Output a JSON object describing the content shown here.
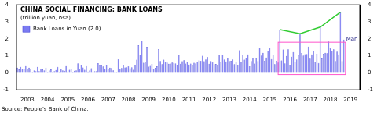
{
  "chart_data": {
    "type": "bar",
    "title": "CHINA SOCIAL FINANCING: BANK LOANS",
    "subtitle": "(trillion yuan, nsa)",
    "source": "Source: People's Bank of China.",
    "categories": [
      null,
      null,
      null,
      null,
      null,
      null,
      "2003",
      null,
      null,
      null,
      null,
      null,
      null,
      null,
      null,
      null,
      null,
      null,
      "2004",
      null,
      null,
      null,
      null,
      null,
      null,
      null,
      null,
      null,
      null,
      null,
      "2005",
      null,
      null,
      null,
      null,
      null,
      null,
      null,
      null,
      null,
      null,
      null,
      "2006",
      null,
      null,
      null,
      null,
      null,
      null,
      null,
      null,
      null,
      null,
      null,
      "2007",
      null,
      null,
      null,
      null,
      null,
      null,
      null,
      null,
      null,
      null,
      null,
      "2008",
      null,
      null,
      null,
      null,
      null,
      null,
      null,
      null,
      null,
      null,
      null,
      "2009",
      null,
      null,
      null,
      null,
      null,
      null,
      null,
      null,
      null,
      null,
      null,
      "2010",
      null,
      null,
      null,
      null,
      null,
      null,
      null,
      null,
      null,
      null,
      null,
      "2011",
      null,
      null,
      null,
      null,
      null,
      null,
      null,
      null,
      null,
      null,
      null,
      "2012",
      null,
      null,
      null,
      null,
      null,
      null,
      null,
      null,
      null,
      null,
      null,
      "2013",
      null,
      null,
      null,
      null,
      null,
      null,
      null,
      null,
      null,
      null,
      null,
      "2014",
      null,
      null,
      null,
      null,
      null,
      null,
      null,
      null,
      null,
      null,
      null,
      "2015",
      null,
      null,
      null,
      null,
      null,
      null,
      null,
      null,
      null,
      null,
      null,
      "2016",
      null,
      null,
      null,
      null,
      null,
      null,
      null,
      null,
      null,
      null,
      null,
      "2017",
      null,
      null,
      null,
      null,
      null,
      null,
      null,
      null,
      null,
      null,
      null,
      "2018",
      null,
      null,
      null,
      null,
      null,
      null,
      null,
      null,
      null,
      null,
      null,
      "2019",
      null,
      null,
      null,
      null,
      null
    ],
    "series": [
      {
        "name": "Bank Loans in Yuan (2.0)",
        "type": "bar",
        "color": "#7b7bf2",
        "values": [
          0.3,
          0.2,
          0.35,
          0.25,
          0.2,
          0.4,
          0.25,
          0.3,
          0.25,
          0.05,
          0.15,
          0.1,
          0.35,
          0.1,
          0.25,
          0.2,
          0.15,
          0.3,
          0.03,
          0.15,
          0.2,
          0.05,
          0.1,
          0.17,
          0.35,
          0.05,
          0.25,
          0.15,
          0.12,
          0.4,
          0.07,
          0.18,
          0.2,
          0.05,
          0.12,
          0.15,
          0.56,
          0.25,
          0.45,
          0.32,
          0.18,
          0.4,
          0.08,
          0.15,
          0.27,
          0.07,
          0.1,
          0.1,
          0.57,
          0.44,
          0.44,
          0.37,
          0.22,
          0.45,
          0.24,
          0.3,
          0.28,
          0.14,
          0.04,
          0.05,
          0.8,
          0.24,
          0.28,
          0.47,
          0.32,
          0.33,
          0.39,
          0.27,
          0.33,
          0.18,
          0.48,
          0.77,
          1.62,
          1.07,
          1.89,
          0.59,
          0.66,
          1.53,
          0.36,
          0.41,
          0.52,
          0.25,
          0.29,
          0.38,
          1.39,
          0.7,
          0.51,
          0.77,
          0.64,
          0.6,
          0.53,
          0.55,
          0.6,
          0.59,
          0.56,
          0.48,
          1.04,
          0.54,
          0.68,
          0.74,
          0.55,
          0.63,
          0.49,
          0.55,
          0.47,
          0.59,
          0.56,
          0.64,
          0.74,
          0.71,
          1.01,
          0.68,
          0.79,
          0.92,
          0.54,
          0.7,
          0.62,
          0.51,
          0.52,
          0.45,
          1.07,
          0.62,
          1.06,
          0.79,
          0.67,
          0.86,
          0.7,
          0.71,
          0.79,
          0.51,
          0.62,
          0.48,
          1.32,
          0.64,
          1.05,
          0.77,
          0.87,
          1.08,
          0.39,
          0.7,
          0.86,
          0.55,
          0.85,
          0.7,
          1.47,
          1.02,
          1.18,
          0.71,
          0.9,
          1.28,
          1.48,
          0.81,
          1.05,
          0.51,
          0.71,
          0.6,
          2.54,
          0.73,
          1.37,
          0.56,
          0.99,
          1.38,
          0.46,
          0.95,
          1.22,
          0.65,
          0.79,
          1.04,
          2.3,
          1.17,
          1.02,
          1.1,
          1.11,
          1.54,
          0.83,
          1.09,
          1.27,
          0.66,
          1.12,
          0.58,
          2.69,
          0.84,
          1.12,
          1.18,
          1.15,
          1.84,
          1.45,
          1.28,
          1.38,
          0.7,
          1.25,
          1.08,
          3.57,
          0.7,
          1.96,
          null,
          null,
          null,
          null,
          null,
          null,
          null,
          null,
          null
        ]
      },
      {
        "type": "line",
        "color": "#33cc33",
        "values": [
          null,
          null,
          null,
          null,
          null,
          null,
          null,
          null,
          null,
          null,
          null,
          null,
          null,
          null,
          null,
          null,
          null,
          null,
          null,
          null,
          null,
          null,
          null,
          null,
          null,
          null,
          null,
          null,
          null,
          null,
          null,
          null,
          null,
          null,
          null,
          null,
          null,
          null,
          null,
          null,
          null,
          null,
          null,
          null,
          null,
          null,
          null,
          null,
          null,
          null,
          null,
          null,
          null,
          null,
          null,
          null,
          null,
          null,
          null,
          null,
          null,
          null,
          null,
          null,
          null,
          null,
          null,
          null,
          null,
          null,
          null,
          null,
          null,
          null,
          null,
          null,
          null,
          null,
          null,
          null,
          null,
          null,
          null,
          null,
          null,
          null,
          null,
          null,
          null,
          null,
          null,
          null,
          null,
          null,
          null,
          null,
          null,
          null,
          null,
          null,
          null,
          null,
          null,
          null,
          null,
          null,
          null,
          null,
          null,
          null,
          null,
          null,
          null,
          null,
          null,
          null,
          null,
          null,
          null,
          null,
          null,
          null,
          null,
          null,
          null,
          null,
          null,
          null,
          null,
          null,
          null,
          null,
          null,
          null,
          null,
          null,
          null,
          null,
          null,
          null,
          null,
          null,
          null,
          null,
          null,
          null,
          null,
          null,
          null,
          null,
          null,
          null,
          null,
          null,
          null,
          null,
          2.54,
          null,
          null,
          null,
          null,
          null,
          null,
          null,
          null,
          null,
          null,
          null,
          2.3,
          null,
          null,
          null,
          null,
          null,
          null,
          null,
          null,
          null,
          null,
          null,
          2.69,
          null,
          null,
          null,
          null,
          null,
          null,
          null,
          null,
          null,
          null,
          null,
          3.57,
          null,
          null,
          null,
          null,
          null,
          null,
          null,
          null,
          null,
          null,
          null
        ]
      }
    ],
    "ylim": [
      -1,
      4
    ],
    "yticks": [
      -1,
      0,
      1,
      2,
      3,
      4
    ],
    "y2lim": [
      -1,
      4
    ],
    "y2ticks": [
      -1,
      0,
      1,
      2,
      3,
      4
    ],
    "grid": false,
    "legend": "upper left",
    "annotations": [
      {
        "text": "Mar",
        "index": 194
      }
    ],
    "highlight_box": {
      "x": [
        155,
        195
      ],
      "y": [
        -0.1,
        1.8
      ],
      "color": "#ff55cc"
    }
  }
}
